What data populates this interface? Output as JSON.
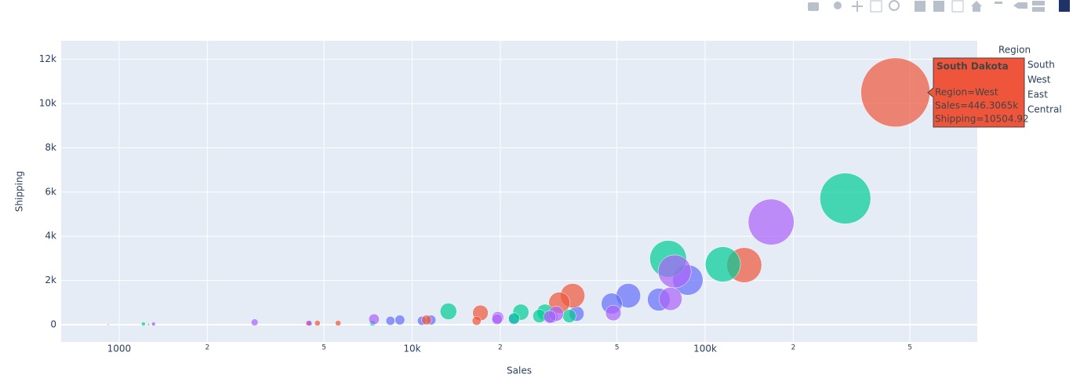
{
  "chart_data": {
    "type": "scatter",
    "x_label": "Sales",
    "y_label": "Shipping",
    "x_log": true,
    "grid": true,
    "xlim": [
      634,
      849000
    ],
    "ylim": [
      -780,
      12840
    ],
    "xticks": [
      {
        "value": 1000,
        "label": "1000"
      },
      {
        "value": 2000,
        "label": "2"
      },
      {
        "value": 5000,
        "label": "5"
      },
      {
        "value": 10000,
        "label": "10k"
      },
      {
        "value": 20000,
        "label": "2"
      },
      {
        "value": 50000,
        "label": "5"
      },
      {
        "value": 100000,
        "label": "100k"
      },
      {
        "value": 200000,
        "label": "2"
      },
      {
        "value": 500000,
        "label": "5"
      }
    ],
    "yticks": [
      0,
      {
        "value": 2000,
        "label": "2k"
      },
      {
        "value": 4000,
        "label": "4k"
      },
      {
        "value": 6000,
        "label": "6k"
      },
      {
        "value": 8000,
        "label": "8k"
      },
      {
        "value": 10000,
        "label": "10k"
      },
      {
        "value": 12000,
        "label": "12k"
      }
    ],
    "legend_title": "Region",
    "legend_position": "right",
    "series": [
      {
        "name": "South",
        "color": "#636efa",
        "x": [
          87300,
          54700,
          48000,
          69500,
          36400,
          29900,
          22200,
          11600,
          10800,
          9080,
          8430,
          1310,
          4480
        ],
        "y": [
          2021,
          1312,
          957,
          1135,
          496,
          355,
          248,
          213,
          177,
          213,
          177,
          5,
          60
        ]
      },
      {
        "name": "West",
        "color": "#EF553B",
        "x": [
          446306.5,
          136000,
          35300,
          31800,
          17100,
          16600,
          11200,
          5590,
          4750,
          4420,
          918
        ],
        "y": [
          10504.92,
          2695,
          1312,
          993,
          532,
          177,
          213,
          70,
          70,
          70,
          5
        ]
      },
      {
        "name": "East",
        "color": "#00cc96",
        "x": [
          301000,
          115000,
          74800,
          13300,
          23500,
          28400,
          27200,
          34400,
          22300,
          7330,
          1210,
          1260
        ],
        "y": [
          5709,
          2730,
          2980,
          603,
          567,
          567,
          390,
          390,
          284,
          70,
          35,
          10
        ]
      },
      {
        "name": "Central",
        "color": "#ab63fa",
        "x": [
          168000,
          78700,
          76200,
          48600,
          31000,
          29500,
          19600,
          19500,
          7410,
          2900,
          4450,
          1310
        ],
        "y": [
          4645,
          2411,
          1170,
          532,
          496,
          355,
          319,
          248,
          248,
          106,
          70,
          35
        ]
      }
    ],
    "hover": {
      "title": "South Dakota",
      "lines": [
        "Region=West",
        "Sales=446.3065k",
        "Shipping=10504.92"
      ]
    }
  }
}
